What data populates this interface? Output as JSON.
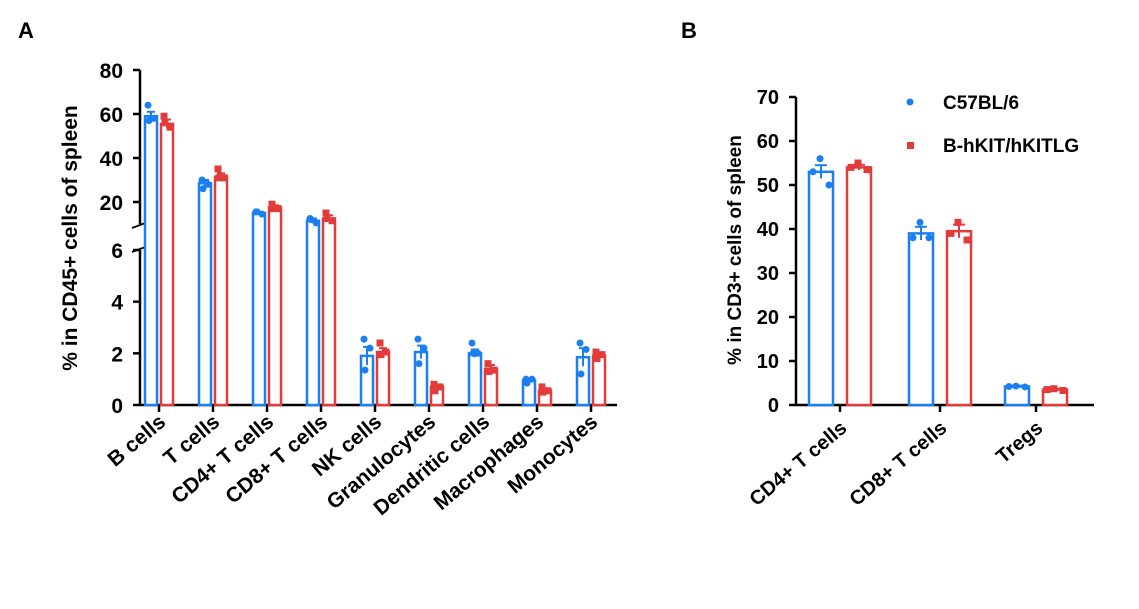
{
  "colors": {
    "wt": "#1a7ff0",
    "hum": "#e23b3b",
    "axis": "#000000"
  },
  "legend": {
    "wt_label": "C57BL/6",
    "hum_label": "B-hKIT/hKITLG"
  },
  "chart_data": [
    {
      "panel": "A",
      "type": "bar",
      "ylabel": "% in CD45+ cells of spleen",
      "y_broken": true,
      "ylim_lower": [
        0,
        6
      ],
      "ylim_upper": [
        10,
        80
      ],
      "yticks_lower": [
        "0",
        "2",
        "4",
        "6"
      ],
      "yticks_upper": [
        "20",
        "40",
        "60",
        "80"
      ],
      "categories": [
        "B cells",
        "T cells",
        "CD4+ T cells",
        "CD8+ T cells",
        "NK cells",
        "Granulocytes",
        "Dendritic cells",
        "Macrophages",
        "Monocytes"
      ],
      "series": [
        {
          "name": "C57BL/6",
          "values": [
            59,
            28.5,
            15,
            11.5,
            1.9,
            2.05,
            2.0,
            0.95,
            1.85
          ],
          "errors": [
            2,
            1.5,
            0.5,
            1,
            0.35,
            0.25,
            0.15,
            0.08,
            0.35
          ],
          "points": [
            [
              64,
              58,
              57
            ],
            [
              30,
              28,
              26
            ],
            [
              15.5,
              14.5,
              15.5
            ],
            [
              12.5,
              10.5,
              12
            ],
            [
              2.55,
              2.2,
              1.35
            ],
            [
              2.55,
              2.2,
              1.6
            ],
            [
              2.4,
              2.0,
              2.0
            ],
            [
              1.0,
              1.0,
              0.85
            ],
            [
              2.4,
              2.15,
              1.2
            ]
          ]
        },
        {
          "name": "B-hKIT/hKITLG",
          "values": [
            55.5,
            31.5,
            17.5,
            12.5,
            2.05,
            0.7,
            1.4,
            0.55,
            1.9
          ],
          "errors": [
            2,
            1.5,
            1,
            1.5,
            0.15,
            0.08,
            0.15,
            0.08,
            0.1
          ],
          "points": [
            [
              59,
              54,
              56
            ],
            [
              35,
              31,
              31
            ],
            [
              19,
              17,
              17
            ],
            [
              15,
              11.5,
              12.5
            ],
            [
              2.4,
              2.05,
              1.95
            ],
            [
              0.8,
              0.7,
              0.55
            ],
            [
              1.6,
              1.35,
              1.3
            ],
            [
              0.7,
              0.55,
              0.5
            ],
            [
              2.05,
              1.95,
              1.8
            ]
          ]
        }
      ]
    },
    {
      "panel": "B",
      "type": "bar",
      "ylabel": "% in CD3+ cells of spleen",
      "ylim": [
        0,
        70
      ],
      "yticks": [
        "0",
        "10",
        "20",
        "30",
        "40",
        "50",
        "60",
        "70"
      ],
      "categories": [
        "CD4+ T cells",
        "CD8+ T cells",
        "Tregs"
      ],
      "legend_position": "top-right",
      "series": [
        {
          "name": "C57BL/6",
          "values": [
            53,
            39,
            4.2
          ],
          "errors": [
            1.5,
            1.5,
            0.2
          ],
          "points": [
            [
              56,
              53,
              50
            ],
            [
              41.5,
              38,
              38
            ],
            [
              4.3,
              4.2,
              4.1
            ]
          ]
        },
        {
          "name": "B-hKIT/hKITLG",
          "values": [
            54,
            39.5,
            3.5
          ],
          "errors": [
            0.6,
            1.5,
            0.2
          ],
          "points": [
            [
              55,
              54,
              53.5
            ],
            [
              41.5,
              39,
              37.5
            ],
            [
              3.7,
              3.5,
              3.3
            ]
          ]
        }
      ]
    }
  ],
  "panel_labels": [
    "A",
    "B"
  ]
}
